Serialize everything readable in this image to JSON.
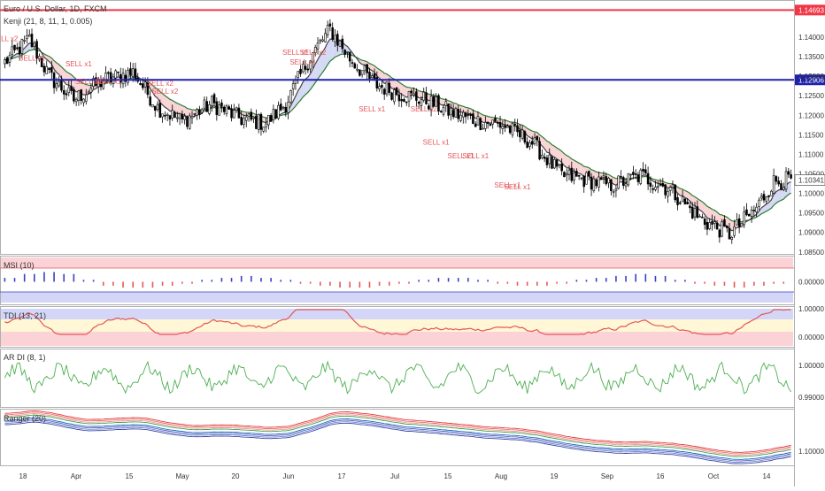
{
  "header": {
    "title": "Euro / U.S. Dollar, 1D, FXCM",
    "subtitle": "Kenji (21, 8, 11, 1, 0.005)"
  },
  "colors": {
    "up": "#ffffff",
    "down": "#000000",
    "red_line": "#f23645",
    "blue_line": "#1e22aa",
    "ma_fast": "#444444",
    "ma_slow": "#2e7d32",
    "fill_bear": "#f8c9cc",
    "fill_bull": "#c9cff3",
    "signal": "#e4575b"
  },
  "chart_data": [
    {
      "type": "candlestick",
      "name": "main",
      "ylim": [
        1.0845,
        1.1495
      ],
      "yticks": [
        "1.14000",
        "1.13500",
        "1.13000",
        "1.12500",
        "1.12000",
        "1.11500",
        "1.11000",
        "1.10500",
        "1.10000",
        "1.09500",
        "1.09000",
        "1.08500"
      ],
      "x_labels": [
        "18",
        "Apr",
        "15",
        "May",
        "20",
        "Jun",
        "17",
        "Jul",
        "15",
        "Aug",
        "19",
        "Sep",
        "16",
        "Oct",
        "14"
      ],
      "ohlc_anchors": [
        [
          0,
          1.1335
        ],
        [
          10,
          1.1395
        ],
        [
          18,
          1.13
        ],
        [
          28,
          1.124
        ],
        [
          40,
          1.129
        ],
        [
          52,
          1.131
        ],
        [
          62,
          1.122
        ],
        [
          72,
          1.1185
        ],
        [
          84,
          1.123
        ],
        [
          96,
          1.119
        ],
        [
          106,
          1.118
        ],
        [
          114,
          1.123
        ],
        [
          124,
          1.135
        ],
        [
          132,
          1.142
        ],
        [
          140,
          1.1345
        ],
        [
          150,
          1.128
        ],
        [
          160,
          1.1255
        ],
        [
          170,
          1.124
        ],
        [
          182,
          1.1205
        ],
        [
          192,
          1.1185
        ],
        [
          202,
          1.1175
        ],
        [
          214,
          1.113
        ],
        [
          226,
          1.1045
        ],
        [
          236,
          1.1035
        ],
        [
          246,
          1.102
        ],
        [
          258,
          1.1045
        ],
        [
          270,
          1.101
        ],
        [
          282,
          1.0935
        ],
        [
          294,
          1.0895
        ],
        [
          304,
          1.0955
        ],
        [
          312,
          1.103
        ],
        [
          318,
          1.1035
        ]
      ],
      "horizontal_lines": [
        {
          "value": 1.14693,
          "label": "1.14693",
          "color": "#f23645"
        },
        {
          "value": 1.12906,
          "label": "1.12906",
          "color": "#1e22aa"
        }
      ],
      "last_price": "1.10341",
      "signals": [
        {
          "label": "SELL x2",
          "x": "Mar 18",
          "y": 1.139
        },
        {
          "label": "SELL x1",
          "x": "Mar 28",
          "y": 1.134
        },
        {
          "label": "SELL x1",
          "x": "Apr 17",
          "y": 1.1325
        },
        {
          "label": "SELL x1",
          "x": "Apr 20",
          "y": 1.128
        },
        {
          "label": "SELL x1",
          "x": "Apr 28",
          "y": 1.128
        },
        {
          "label": "SELL x2",
          "x": "May 18",
          "y": 1.1275
        },
        {
          "label": "SELL x2",
          "x": "May 20",
          "y": 1.1255
        },
        {
          "label": "SELL x1",
          "x": "Jul 10",
          "y": 1.1355
        },
        {
          "label": "SELL x2",
          "x": "Jul 17",
          "y": 1.1355
        },
        {
          "label": "SELL x1",
          "x": "Jul 13",
          "y": 1.133
        },
        {
          "label": "SELL x1",
          "x": "Aug 10",
          "y": 1.121
        },
        {
          "label": "SELL x2",
          "x": "Aug 30",
          "y": 1.121
        },
        {
          "label": "SELL x1",
          "x": "Sep 05",
          "y": 1.1125
        },
        {
          "label": "SELL x1",
          "x": "Sep 14",
          "y": 1.109
        },
        {
          "label": "SELL x1",
          "x": "Sep 20",
          "y": 1.109
        },
        {
          "label": "SELL x1",
          "x": "Oct 02",
          "y": 1.1015
        },
        {
          "label": "SELL x1",
          "x": "Oct 06",
          "y": 1.101
        }
      ]
    },
    {
      "type": "bar",
      "name": "msi",
      "title": "MSI (10)",
      "yticks": [
        "0.00000"
      ],
      "pattern": [
        2,
        4,
        5,
        4,
        1,
        -2,
        -3,
        -3,
        -2,
        -1,
        1,
        2,
        3,
        2,
        1,
        -1,
        -2,
        -3,
        -3,
        -2,
        -1,
        1,
        2,
        2,
        1,
        -1,
        -2,
        -2,
        -1,
        1,
        2,
        3,
        4,
        3,
        1,
        -1,
        -2,
        -3,
        -2,
        -1
      ]
    },
    {
      "type": "line",
      "name": "tdi",
      "title": "TDI (13, 21)",
      "yticks": [
        "1.00000",
        "0.00000"
      ]
    },
    {
      "type": "line",
      "name": "ardi",
      "title": "AR DI (8, 1)",
      "yticks": [
        "1.00000",
        "0.99000"
      ]
    },
    {
      "type": "line",
      "name": "ranger",
      "title": "Ranger (20)",
      "yticks": [
        "1.10000"
      ]
    }
  ]
}
